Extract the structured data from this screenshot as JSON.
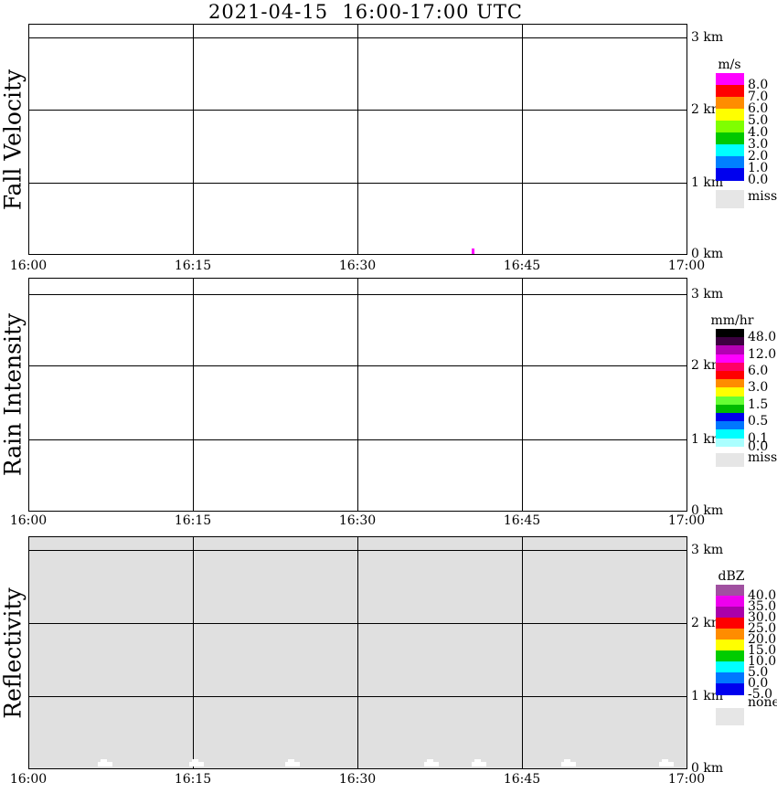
{
  "title": "2021-04-15  16:00-17:00 UTC",
  "axes": {
    "x_tick_labels": [
      "16:00",
      "16:15",
      "16:30",
      "16:45",
      "17:00"
    ],
    "y_tick_labels": [
      "3 km",
      "2 km",
      "1 km",
      "0 km"
    ]
  },
  "panels": [
    {
      "ylabel": "Fall Velocity",
      "background": "#FFFFFF"
    },
    {
      "ylabel": "Rain Intensity",
      "background": "#FFFFFF"
    },
    {
      "ylabel": "Reflectivity",
      "background": "#E0E0E0"
    }
  ],
  "colorbars": [
    {
      "title": "m/s",
      "segments": [
        {
          "color": "#FF00FF",
          "label": "8.0"
        },
        {
          "color": "#FF0000",
          "label": "7.0"
        },
        {
          "color": "#FF8C00",
          "label": "6.0"
        },
        {
          "color": "#FFFF00",
          "label": "5.0"
        },
        {
          "color": "#7FFF00",
          "label": "4.0"
        },
        {
          "color": "#00C800",
          "label": "3.0"
        },
        {
          "color": "#00FFFF",
          "label": "2.0"
        },
        {
          "color": "#0080FF",
          "label": "1.0"
        },
        {
          "color": "#0000EE",
          "label": "0.0"
        }
      ],
      "extra": {
        "color": "#E6E6E6",
        "label": "miss"
      }
    },
    {
      "title": "mm/hr",
      "segments": [
        {
          "color": "#000000",
          "label": "48.0"
        },
        {
          "color": "#3C0040"
        },
        {
          "color": "#B400B4",
          "label": "12.0"
        },
        {
          "color": "#FF00FF"
        },
        {
          "color": "#FF0066",
          "label": "6.0"
        },
        {
          "color": "#FF0000"
        },
        {
          "color": "#FF8C00",
          "label": "3.0"
        },
        {
          "color": "#FFFF00"
        },
        {
          "color": "#66FF33",
          "label": "1.5"
        },
        {
          "color": "#00BB00"
        },
        {
          "color": "#0000EE",
          "label": "0.5"
        },
        {
          "color": "#0077FF"
        },
        {
          "color": "#00FFFF",
          "label": "0.1"
        },
        {
          "color": "#AAFFFF",
          "label": "0.0"
        }
      ],
      "extra": {
        "color": "#E6E6E6",
        "label": "miss"
      }
    },
    {
      "title": "dBZ",
      "segments": [
        {
          "color": "#A050A0",
          "label": "40.0"
        },
        {
          "color": "#EE00EE",
          "label": "35.0"
        },
        {
          "color": "#AA00AA",
          "label": "30.0"
        },
        {
          "color": "#FF0000",
          "label": "25.0"
        },
        {
          "color": "#FF8C00",
          "label": "20.0"
        },
        {
          "color": "#FFFF00",
          "label": "15.0"
        },
        {
          "color": "#00CC00",
          "label": "10.0"
        },
        {
          "color": "#00FFFF",
          "label": "5.0"
        },
        {
          "color": "#0077FF",
          "label": "0.0"
        },
        {
          "color": "#0000EE",
          "label": "-5.0"
        }
      ],
      "extra": {
        "color": "#E6E6E6",
        "label": "none"
      }
    }
  ],
  "chart_data": [
    {
      "type": "heatmap",
      "title": "Fall Velocity",
      "unit": "m/s",
      "x_ticks": [
        "16:00",
        "16:15",
        "16:30",
        "16:45",
        "17:00"
      ],
      "y_ticks_km": [
        0,
        1,
        2,
        3
      ],
      "y_max_km": 3.2,
      "legend_levels": [
        0.0,
        1.0,
        2.0,
        3.0,
        4.0,
        5.0,
        6.0,
        7.0,
        8.0
      ],
      "legend_extra": "miss",
      "points": [
        {
          "time": "16:40",
          "height_km": 0.05,
          "value": ">8",
          "color": "#FF00FF"
        }
      ],
      "note": "panel otherwise empty (white)"
    },
    {
      "type": "heatmap",
      "title": "Rain Intensity",
      "unit": "mm/hr",
      "x_ticks": [
        "16:00",
        "16:15",
        "16:30",
        "16:45",
        "17:00"
      ],
      "y_ticks_km": [
        0,
        1,
        2,
        3
      ],
      "y_max_km": 3.2,
      "legend_levels": [
        0.0,
        0.1,
        0.5,
        1.5,
        3.0,
        6.0,
        12.0,
        48.0
      ],
      "legend_extra": "miss",
      "points": [],
      "note": "panel empty (white)"
    },
    {
      "type": "heatmap",
      "title": "Reflectivity",
      "unit": "dBZ",
      "x_ticks": [
        "16:00",
        "16:15",
        "16:30",
        "16:45",
        "17:00"
      ],
      "y_ticks_km": [
        0,
        1,
        2,
        3
      ],
      "y_max_km": 3.2,
      "legend_levels": [
        -5.0,
        0.0,
        5.0,
        10.0,
        15.0,
        20.0,
        25.0,
        30.0,
        35.0,
        40.0
      ],
      "legend_extra": "none",
      "points": [],
      "note": "entire panel filled with gray 'none' value; small white gaps near the surface at ~16:07, 16:15, 16:24, 16:37, 16:41, 16:49, 16:58"
    }
  ]
}
